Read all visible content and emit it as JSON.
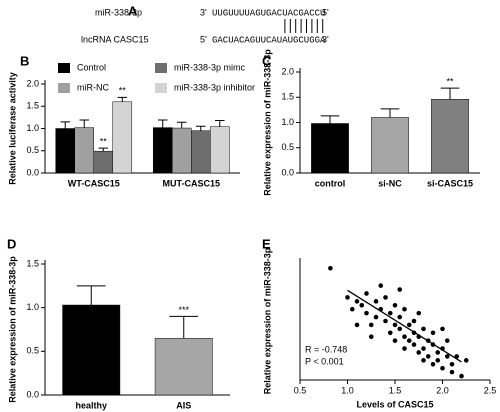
{
  "chart_data": [
    {
      "type": "sequence",
      "label": "A",
      "rows": [
        {
          "name": "miR-338-3p",
          "left": "3'",
          "seq": "UUGUUUUAGUGACUACGACCU",
          "right": "5'"
        },
        {
          "name": "lncRNA CASC15",
          "left": "5'",
          "seq": "GACUACAGUUCAUAUGCUGGA",
          "right": "3'"
        }
      ]
    },
    {
      "type": "bar",
      "label": "B",
      "ylabel": "Relative luciferase activity",
      "categories": [
        "WT-CASC15",
        "MUT-CASC15"
      ],
      "series": [
        {
          "name": "Control",
          "color": "#000000",
          "values": [
            1.0,
            1.02
          ],
          "errors": [
            0.15,
            0.17
          ],
          "annotations": [
            null,
            null
          ]
        },
        {
          "name": "miR-NC",
          "color": "#a0a0a0",
          "values": [
            1.02,
            1.01
          ],
          "errors": [
            0.17,
            0.13
          ],
          "annotations": [
            null,
            null
          ]
        },
        {
          "name": "miR-338-3p mimc",
          "color": "#6e6e6e",
          "values": [
            0.49,
            0.95
          ],
          "errors": [
            0.07,
            0.1
          ],
          "annotations": [
            "**",
            null
          ]
        },
        {
          "name": "miR-338-3p inhibitor",
          "color": "#d4d4d4",
          "values": [
            1.6,
            1.04
          ],
          "errors": [
            0.1,
            0.14
          ],
          "annotations": [
            "**",
            null
          ]
        }
      ],
      "ylim": [
        0,
        2.0
      ],
      "yticks": [
        {
          "value": 0,
          "label": "0.0"
        },
        0.5,
        {
          "value": 1.0,
          "label": "1.0"
        },
        1.5,
        {
          "value": 2.0,
          "label": "2.0"
        }
      ]
    },
    {
      "type": "bar",
      "label": "C",
      "ylabel": "Relative expression of miR-338-3p",
      "categories": [
        "control",
        "si-NC",
        "si-CASC15"
      ],
      "values": [
        0.98,
        1.1,
        1.46
      ],
      "errors": [
        0.15,
        0.17,
        0.22
      ],
      "colors": [
        "#000000",
        "#a6a6a6",
        "#808080"
      ],
      "annotations": [
        null,
        null,
        "**"
      ],
      "ylim": [
        0,
        2.0
      ],
      "yticks": [
        {
          "value": 0,
          "label": "0.0"
        },
        0.5,
        {
          "value": 1.0,
          "label": "1.0"
        },
        1.5,
        {
          "value": 2.0,
          "label": "2.0"
        }
      ]
    },
    {
      "type": "bar",
      "label": "D",
      "ylabel": "Relative expression of miR-338-3p",
      "categories": [
        "healthy",
        "AIS"
      ],
      "values": [
        1.03,
        0.65
      ],
      "errors": [
        0.22,
        0.25
      ],
      "colors": [
        "#000000",
        "#a6a6a6"
      ],
      "annotations": [
        null,
        "***"
      ],
      "ylim": [
        0,
        1.5
      ],
      "yticks": [
        {
          "value": 0,
          "label": "0.0"
        },
        0.5,
        {
          "value": 1.0,
          "label": "1.0"
        },
        1.5
      ]
    },
    {
      "type": "scatter",
      "label": "E",
      "ylabel": "Relative expression of miR-338-3p",
      "xlabel": "Levels of CASC15",
      "annotations": [
        "R = -0.748",
        "P < 0.001"
      ],
      "x": [
        1.0,
        1.05,
        1.1,
        1.15,
        1.2,
        1.2,
        1.25,
        1.3,
        1.3,
        1.35,
        1.4,
        1.4,
        1.45,
        1.45,
        1.5,
        1.5,
        1.5,
        1.55,
        1.55,
        1.6,
        1.6,
        1.6,
        1.65,
        1.65,
        1.7,
        1.7,
        1.7,
        1.75,
        1.75,
        1.8,
        1.8,
        1.8,
        1.85,
        1.85,
        1.9,
        1.9,
        1.9,
        1.95,
        1.95,
        2.0,
        2.0,
        2.05,
        2.05,
        2.1,
        2.1,
        2.15,
        2.2,
        2.25,
        0.82,
        1.1,
        1.35,
        1.55,
        1.25,
        1.75,
        2.0
      ],
      "values": [
        1.05,
        0.9,
        1.0,
        0.95,
        1.1,
        0.85,
        0.7,
        1.0,
        0.8,
        0.9,
        0.75,
        1.05,
        0.6,
        0.85,
        0.7,
        0.95,
        0.5,
        0.8,
        0.65,
        0.55,
        0.9,
        0.4,
        0.7,
        0.5,
        0.75,
        0.45,
        0.6,
        0.35,
        0.55,
        0.65,
        0.4,
        0.25,
        0.5,
        0.3,
        0.45,
        0.2,
        0.6,
        0.35,
        0.25,
        0.4,
        0.15,
        0.3,
        0.5,
        0.2,
        0.1,
        0.3,
        0.05,
        0.25,
        1.42,
        0.7,
        1.2,
        1.15,
        0.55,
        0.85,
        0.65
      ],
      "fit": {
        "x": [
          1.0,
          2.2
        ],
        "values": [
          1.14,
          0.23
        ]
      },
      "xlim": [
        0.5,
        2.5
      ],
      "xticks": [
        0.5,
        {
          "value": 1.0,
          "label": "1.0"
        },
        1.5,
        {
          "value": 2.0,
          "label": "2.0"
        },
        2.5
      ],
      "ylim": [
        0,
        1.5
      ]
    }
  ]
}
